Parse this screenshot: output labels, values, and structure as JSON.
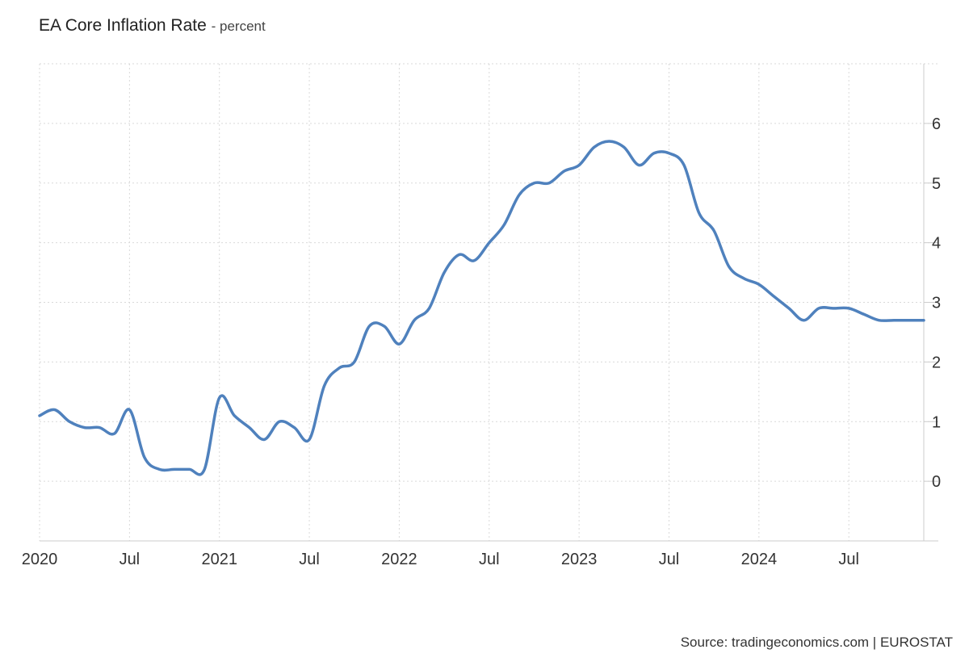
{
  "chart_data": {
    "type": "line",
    "title": "EA Core Inflation Rate",
    "subtitle": "- percent",
    "source": "Source: tradingeconomics.com | EUROSTAT",
    "x_ticks": [
      {
        "label": "2020",
        "month": 0
      },
      {
        "label": "Jul",
        "month": 6
      },
      {
        "label": "2021",
        "month": 12
      },
      {
        "label": "Jul",
        "month": 18
      },
      {
        "label": "2022",
        "month": 24
      },
      {
        "label": "Jul",
        "month": 30
      },
      {
        "label": "2023",
        "month": 36
      },
      {
        "label": "Jul",
        "month": 42
      },
      {
        "label": "2024",
        "month": 48
      },
      {
        "label": "Jul",
        "month": 54
      }
    ],
    "y_ticks": [
      0,
      1,
      2,
      3,
      4,
      5,
      6
    ],
    "ylim": [
      -1,
      7
    ],
    "grid": true,
    "colors": {
      "line": "#4f81bd",
      "grid": "#d9d9d9",
      "axis": "#cccccc"
    },
    "series": [
      {
        "x": [
          "2020-01",
          "2020-02",
          "2020-03",
          "2020-04",
          "2020-05",
          "2020-06",
          "2020-07",
          "2020-08",
          "2020-09",
          "2020-10",
          "2020-11",
          "2020-12",
          "2021-01",
          "2021-02",
          "2021-03",
          "2021-04",
          "2021-05",
          "2021-06",
          "2021-07",
          "2021-08",
          "2021-09",
          "2021-10",
          "2021-11",
          "2021-12",
          "2022-01",
          "2022-02",
          "2022-03",
          "2022-04",
          "2022-05",
          "2022-06",
          "2022-07",
          "2022-08",
          "2022-09",
          "2022-10",
          "2022-11",
          "2022-12",
          "2023-01",
          "2023-02",
          "2023-03",
          "2023-04",
          "2023-05",
          "2023-06",
          "2023-07",
          "2023-08",
          "2023-09",
          "2023-10",
          "2023-11",
          "2023-12",
          "2024-01",
          "2024-02",
          "2024-03",
          "2024-04",
          "2024-05",
          "2024-06",
          "2024-07",
          "2024-08",
          "2024-09",
          "2024-10",
          "2024-11",
          "2024-12"
        ],
        "values": [
          1.1,
          1.2,
          1.0,
          0.9,
          0.9,
          0.8,
          1.2,
          0.4,
          0.2,
          0.2,
          0.2,
          0.2,
          1.4,
          1.1,
          0.9,
          0.7,
          1.0,
          0.9,
          0.7,
          1.6,
          1.9,
          2.0,
          2.6,
          2.6,
          2.3,
          2.7,
          2.9,
          3.5,
          3.8,
          3.7,
          4.0,
          4.3,
          4.8,
          5.0,
          5.0,
          5.2,
          5.3,
          5.6,
          5.7,
          5.6,
          5.3,
          5.5,
          5.5,
          5.3,
          4.5,
          4.2,
          3.6,
          3.4,
          3.3,
          3.1,
          2.9,
          2.7,
          2.9,
          2.9,
          2.9,
          2.8,
          2.7,
          2.7,
          2.7,
          2.7
        ]
      }
    ]
  }
}
